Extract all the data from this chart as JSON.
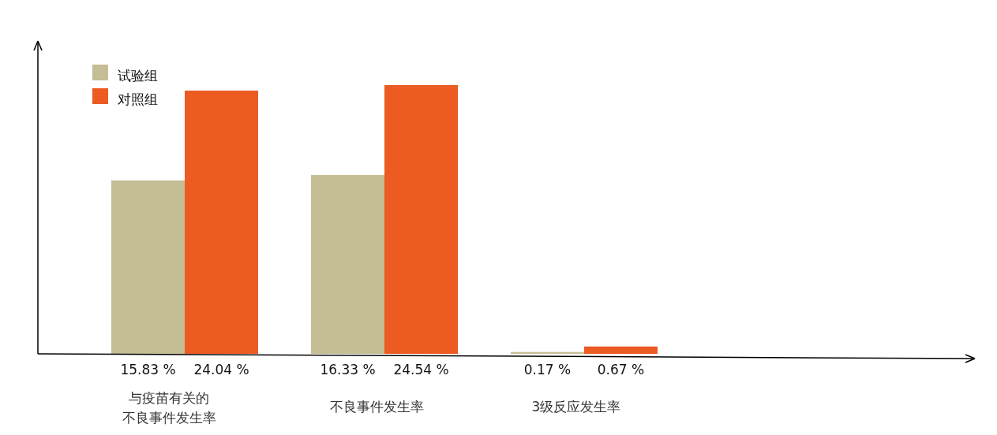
{
  "chart_data": {
    "type": "bar",
    "categories": [
      "与疫苗有关的不良事件发生率",
      "不良事件发生率",
      "3级反应发生率"
    ],
    "series": [
      {
        "name": "试验组",
        "color": "#c5bd93",
        "values": [
          15.83,
          16.33,
          0.17
        ],
        "value_labels": [
          "15.83 %",
          "16.33 %",
          "0.17 %"
        ]
      },
      {
        "name": "对照组",
        "color": "#eb5b22",
        "values": [
          24.04,
          24.54,
          0.67
        ],
        "value_labels": [
          "24.04 %",
          "24.54 %",
          "0.67 %"
        ]
      }
    ],
    "legend": "top left"
  }
}
